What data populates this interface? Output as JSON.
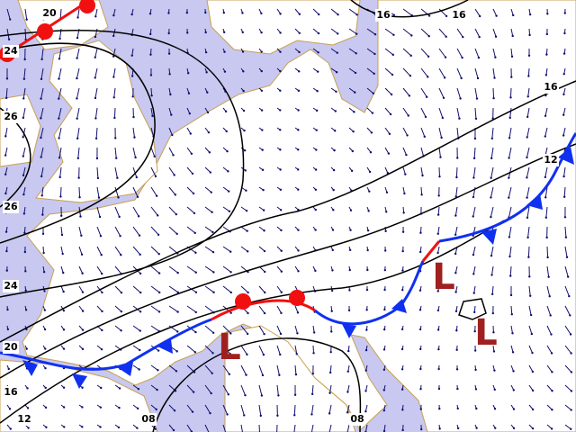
{
  "contour_labels": [
    "20",
    "24",
    "26",
    "26",
    "24",
    "20",
    "16",
    "12",
    "08",
    "08",
    "16",
    "16",
    "16",
    "12"
  ],
  "lows": [
    "L",
    "L",
    "L"
  ]
}
